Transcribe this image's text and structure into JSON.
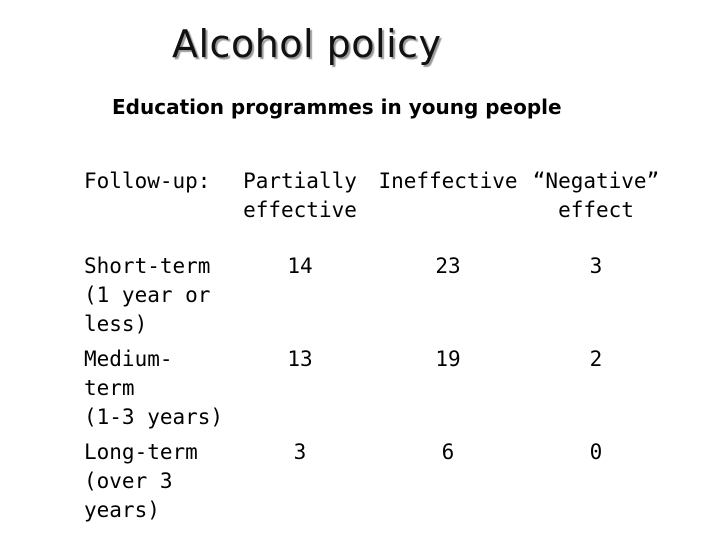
{
  "slide": {
    "title": "Alcohol policy",
    "subtitle": "Education programmes in young people"
  },
  "table": {
    "headers": [
      "Follow-up:",
      "Partially\neffective",
      "Ineffective",
      "“Negative”\neffect"
    ],
    "rows": [
      {
        "label": "Short-term\n(1 year or\nless)",
        "values": [
          "14",
          "23",
          "3"
        ]
      },
      {
        "label": "Medium-\nterm\n(1-3 years)",
        "values": [
          "13",
          "19",
          "2"
        ]
      },
      {
        "label": "Long-term\n(over 3\nyears)",
        "values": [
          "3",
          "6",
          "0"
        ]
      }
    ]
  }
}
